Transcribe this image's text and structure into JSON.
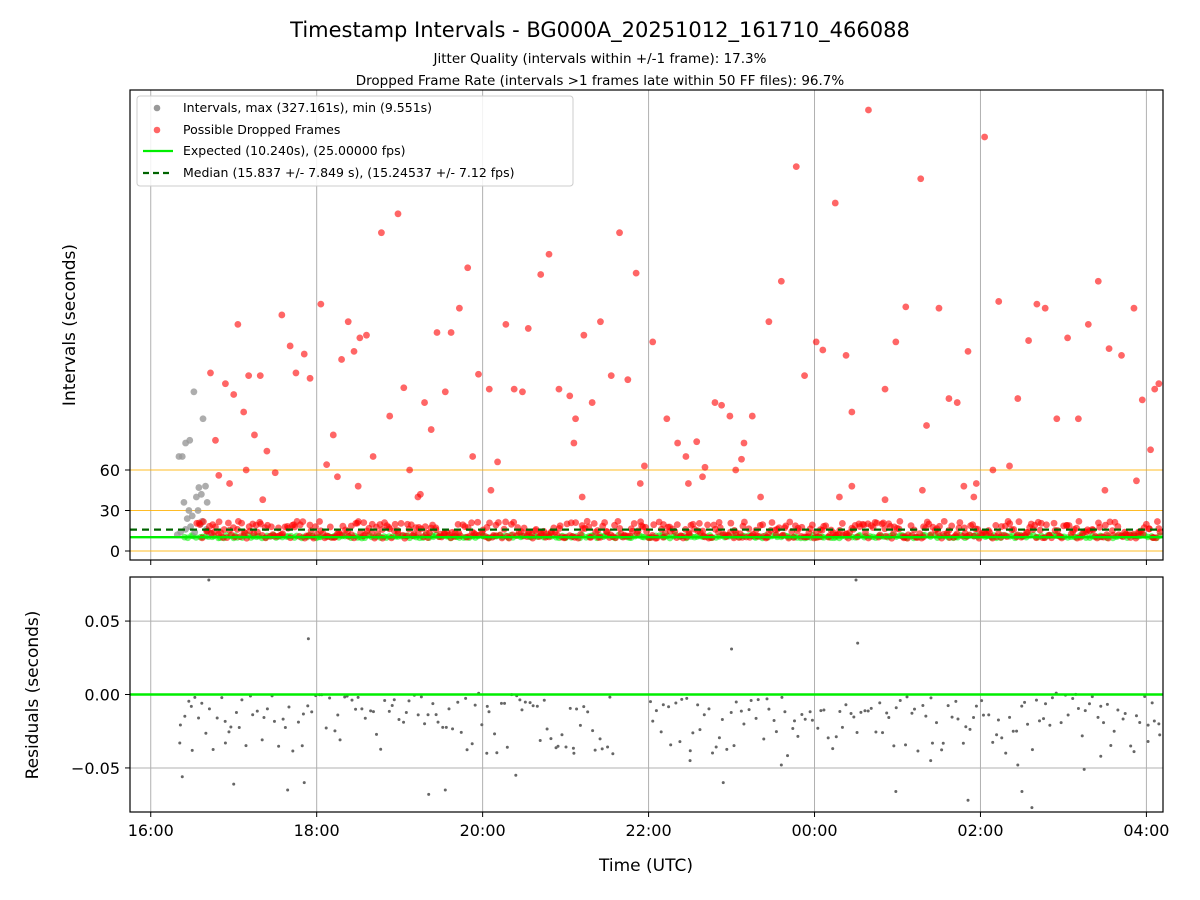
{
  "title": "Timestamp Intervals - BG000A_20251012_161710_466088",
  "subtitle_jitter": "Jitter Quality (intervals within +/-1 frame): 17.3%",
  "subtitle_dropped": "Dropped Frame Rate (intervals >1 frames late within 50 FF files): 96.7%",
  "colors": {
    "intervals": "#999999",
    "dropped": "#ff0000",
    "expected": "#00ee00",
    "median": "#006400",
    "threshold": "#ffb000",
    "residual": "#666666",
    "grid": "#b0b0b0"
  },
  "chart_data": [
    {
      "type": "scatter",
      "name": "intervals",
      "ylabel": "Intervals (seconds)",
      "xlabel": "",
      "xlim_hours": [
        15.75,
        28.2
      ],
      "ylim": [
        -7,
        340
      ],
      "x_ticks": [
        {
          "value": 16,
          "label": "16:00"
        },
        {
          "value": 18,
          "label": "18:00"
        },
        {
          "value": 20,
          "label": "20:00"
        },
        {
          "value": 22,
          "label": "22:00"
        },
        {
          "value": 24,
          "label": "00:00"
        },
        {
          "value": 26,
          "label": "02:00"
        },
        {
          "value": 28,
          "label": "04:00"
        }
      ],
      "y_ticks": [
        {
          "value": 0,
          "label": "0"
        },
        {
          "value": 30,
          "label": "30"
        },
        {
          "value": 60,
          "label": "60"
        }
      ],
      "threshold_lines": [
        0,
        30,
        60
      ],
      "expected_line": 10.24,
      "median_line": 15.837,
      "legend": [
        {
          "label": "Intervals, max (327.161s), min (9.551s)",
          "kind": "marker",
          "color_key": "intervals"
        },
        {
          "label": "Possible Dropped Frames",
          "kind": "marker",
          "color_key": "dropped"
        },
        {
          "label": "Expected (10.240s), (25.00000 fps)",
          "kind": "line",
          "color_key": "expected"
        },
        {
          "label": "Median (15.837 +/- 7.849 s), (15.24537 +/- 7.12 fps)",
          "kind": "dashed",
          "color_key": "median"
        }
      ],
      "gray_points": [
        [
          16.34,
          70
        ],
        [
          16.38,
          70
        ],
        [
          16.42,
          80
        ],
        [
          16.47,
          82
        ],
        [
          16.52,
          118
        ],
        [
          16.58,
          47
        ],
        [
          16.63,
          98
        ],
        [
          16.68,
          36
        ],
        [
          16.4,
          36
        ],
        [
          16.46,
          30
        ],
        [
          16.55,
          40
        ],
        [
          16.61,
          42
        ],
        [
          16.66,
          48
        ],
        [
          16.44,
          24
        ],
        [
          16.5,
          26
        ],
        [
          16.57,
          30
        ],
        [
          16.62,
          22
        ],
        [
          16.36,
          14
        ],
        [
          16.42,
          16
        ],
        [
          16.48,
          18
        ],
        [
          16.53,
          14
        ],
        [
          16.6,
          20
        ],
        [
          16.67,
          16
        ],
        [
          16.32,
          12
        ],
        [
          16.72,
          13
        ]
      ],
      "red_outliers": [
        [
          16.72,
          132
        ],
        [
          16.78,
          82
        ],
        [
          16.82,
          56
        ],
        [
          16.9,
          124
        ],
        [
          17.0,
          116
        ],
        [
          17.05,
          168
        ],
        [
          17.12,
          103
        ],
        [
          17.18,
          130
        ],
        [
          17.25,
          86
        ],
        [
          17.32,
          130
        ],
        [
          17.4,
          74
        ],
        [
          17.5,
          58
        ],
        [
          17.58,
          175
        ],
        [
          17.68,
          152
        ],
        [
          17.75,
          132
        ],
        [
          17.85,
          146
        ],
        [
          17.92,
          128
        ],
        [
          18.05,
          183
        ],
        [
          18.12,
          64
        ],
        [
          18.2,
          86
        ],
        [
          18.3,
          142
        ],
        [
          18.38,
          170
        ],
        [
          18.45,
          148
        ],
        [
          18.52,
          158
        ],
        [
          18.6,
          160
        ],
        [
          18.68,
          70
        ],
        [
          18.78,
          236
        ],
        [
          18.88,
          100
        ],
        [
          18.98,
          250
        ],
        [
          19.05,
          121
        ],
        [
          19.12,
          60
        ],
        [
          19.22,
          40
        ],
        [
          19.3,
          110
        ],
        [
          19.38,
          90
        ],
        [
          19.45,
          162
        ],
        [
          19.55,
          118
        ],
        [
          19.62,
          162
        ],
        [
          19.72,
          180
        ],
        [
          19.82,
          210
        ],
        [
          19.95,
          131
        ],
        [
          20.08,
          120
        ],
        [
          20.18,
          66
        ],
        [
          20.28,
          168
        ],
        [
          20.38,
          120
        ],
        [
          20.48,
          118
        ],
        [
          20.55,
          165
        ],
        [
          20.7,
          205
        ],
        [
          20.8,
          220
        ],
        [
          20.92,
          120
        ],
        [
          21.05,
          115
        ],
        [
          21.12,
          98
        ],
        [
          21.22,
          160
        ],
        [
          21.32,
          110
        ],
        [
          21.42,
          170
        ],
        [
          21.55,
          130
        ],
        [
          21.65,
          236
        ],
        [
          21.75,
          127
        ],
        [
          21.85,
          206
        ],
        [
          21.95,
          63
        ],
        [
          22.05,
          155
        ],
        [
          22.22,
          98
        ],
        [
          22.35,
          80
        ],
        [
          22.45,
          70
        ],
        [
          22.58,
          81
        ],
        [
          22.68,
          62
        ],
        [
          22.8,
          110
        ],
        [
          22.88,
          108
        ],
        [
          22.98,
          100
        ],
        [
          23.12,
          68
        ],
        [
          23.25,
          100
        ],
        [
          23.45,
          170
        ],
        [
          23.6,
          200
        ],
        [
          23.78,
          285
        ],
        [
          23.88,
          130
        ],
        [
          24.02,
          155
        ],
        [
          24.1,
          149
        ],
        [
          24.25,
          258
        ],
        [
          24.38,
          145
        ],
        [
          24.45,
          103
        ],
        [
          24.65,
          327
        ],
        [
          24.85,
          120
        ],
        [
          24.98,
          155
        ],
        [
          25.1,
          181
        ],
        [
          25.28,
          276
        ],
        [
          25.35,
          93
        ],
        [
          25.5,
          180
        ],
        [
          25.62,
          113
        ],
        [
          25.72,
          110
        ],
        [
          25.85,
          148
        ],
        [
          25.95,
          50
        ],
        [
          26.05,
          307
        ],
        [
          26.22,
          185
        ],
        [
          26.35,
          63
        ],
        [
          26.45,
          113
        ],
        [
          26.58,
          156
        ],
        [
          26.68,
          183
        ],
        [
          26.78,
          180
        ],
        [
          26.92,
          98
        ],
        [
          27.05,
          158
        ],
        [
          27.18,
          98
        ],
        [
          27.3,
          168
        ],
        [
          27.42,
          200
        ],
        [
          27.55,
          150
        ],
        [
          27.7,
          145
        ],
        [
          27.85,
          180
        ],
        [
          27.95,
          112
        ],
        [
          28.05,
          75
        ],
        [
          28.1,
          120
        ],
        [
          28.15,
          124
        ],
        [
          26.15,
          60
        ],
        [
          25.3,
          45
        ],
        [
          24.45,
          48
        ],
        [
          23.05,
          60
        ],
        [
          22.48,
          50
        ],
        [
          21.2,
          40
        ],
        [
          19.25,
          42
        ],
        [
          18.5,
          48
        ],
        [
          17.35,
          38
        ],
        [
          16.95,
          50
        ],
        [
          20.1,
          45
        ],
        [
          21.9,
          50
        ],
        [
          23.35,
          40
        ],
        [
          24.85,
          38
        ],
        [
          27.5,
          45
        ],
        [
          27.88,
          52
        ],
        [
          25.8,
          48
        ],
        [
          23.15,
          80
        ],
        [
          22.65,
          55
        ],
        [
          21.1,
          80
        ],
        [
          19.88,
          70
        ],
        [
          18.25,
          55
        ],
        [
          17.15,
          60
        ],
        [
          24.3,
          40
        ],
        [
          25.92,
          40
        ]
      ],
      "red_band": {
        "x_start": 16.55,
        "x_end": 28.18,
        "count": 560,
        "y_min": 9.5,
        "y_max": 22,
        "seed": 7
      },
      "green_band": {
        "x_start": 16.4,
        "x_end": 28.18,
        "count": 330,
        "y_min": 9.6,
        "y_max": 11.8,
        "seed": 11
      }
    },
    {
      "type": "scatter",
      "name": "residuals",
      "ylabel": "Residuals (seconds)",
      "xlabel": "Time (UTC)",
      "xlim_hours": [
        15.75,
        28.2
      ],
      "ylim": [
        -0.08,
        0.08
      ],
      "x_ticks": [
        {
          "value": 16,
          "label": "16:00"
        },
        {
          "value": 18,
          "label": "18:00"
        },
        {
          "value": 20,
          "label": "20:00"
        },
        {
          "value": 22,
          "label": "22:00"
        },
        {
          "value": 24,
          "label": "00:00"
        },
        {
          "value": 26,
          "label": "02:00"
        },
        {
          "value": 28,
          "label": "04:00"
        }
      ],
      "y_ticks": [
        {
          "value": 0.05,
          "label": "0.05"
        },
        {
          "value": 0.0,
          "label": "0.00"
        },
        {
          "value": -0.05,
          "label": "−0.05"
        }
      ],
      "zero_line": 0,
      "points": [
        [
          16.7,
          0.078
        ],
        [
          17.9,
          0.038
        ],
        [
          23.0,
          0.031
        ],
        [
          24.5,
          0.078
        ],
        [
          24.52,
          0.035
        ],
        [
          16.38,
          -0.056
        ],
        [
          17.0,
          -0.061
        ],
        [
          17.65,
          -0.065
        ],
        [
          17.85,
          -0.06
        ],
        [
          19.35,
          -0.068
        ],
        [
          19.55,
          -0.065
        ],
        [
          20.4,
          -0.055
        ],
        [
          22.9,
          -0.06
        ],
        [
          23.6,
          -0.048
        ],
        [
          24.98,
          -0.066
        ],
        [
          25.85,
          -0.072
        ],
        [
          26.5,
          -0.066
        ],
        [
          26.62,
          -0.077
        ],
        [
          27.25,
          -0.051
        ],
        [
          20.05,
          -0.04
        ],
        [
          21.1,
          -0.04
        ],
        [
          22.5,
          -0.045
        ],
        [
          25.4,
          -0.045
        ],
        [
          26.45,
          -0.048
        ],
        [
          27.45,
          -0.042
        ],
        [
          28.02,
          -0.032
        ],
        [
          28.15,
          -0.02
        ],
        [
          16.35,
          -0.033
        ],
        [
          16.5,
          -0.038
        ],
        [
          16.9,
          -0.033
        ]
      ],
      "band": {
        "x_start": 16.35,
        "x_end": 28.18,
        "count": 270,
        "y_min": -0.042,
        "y_max": 0.001,
        "seed": 23
      }
    }
  ]
}
